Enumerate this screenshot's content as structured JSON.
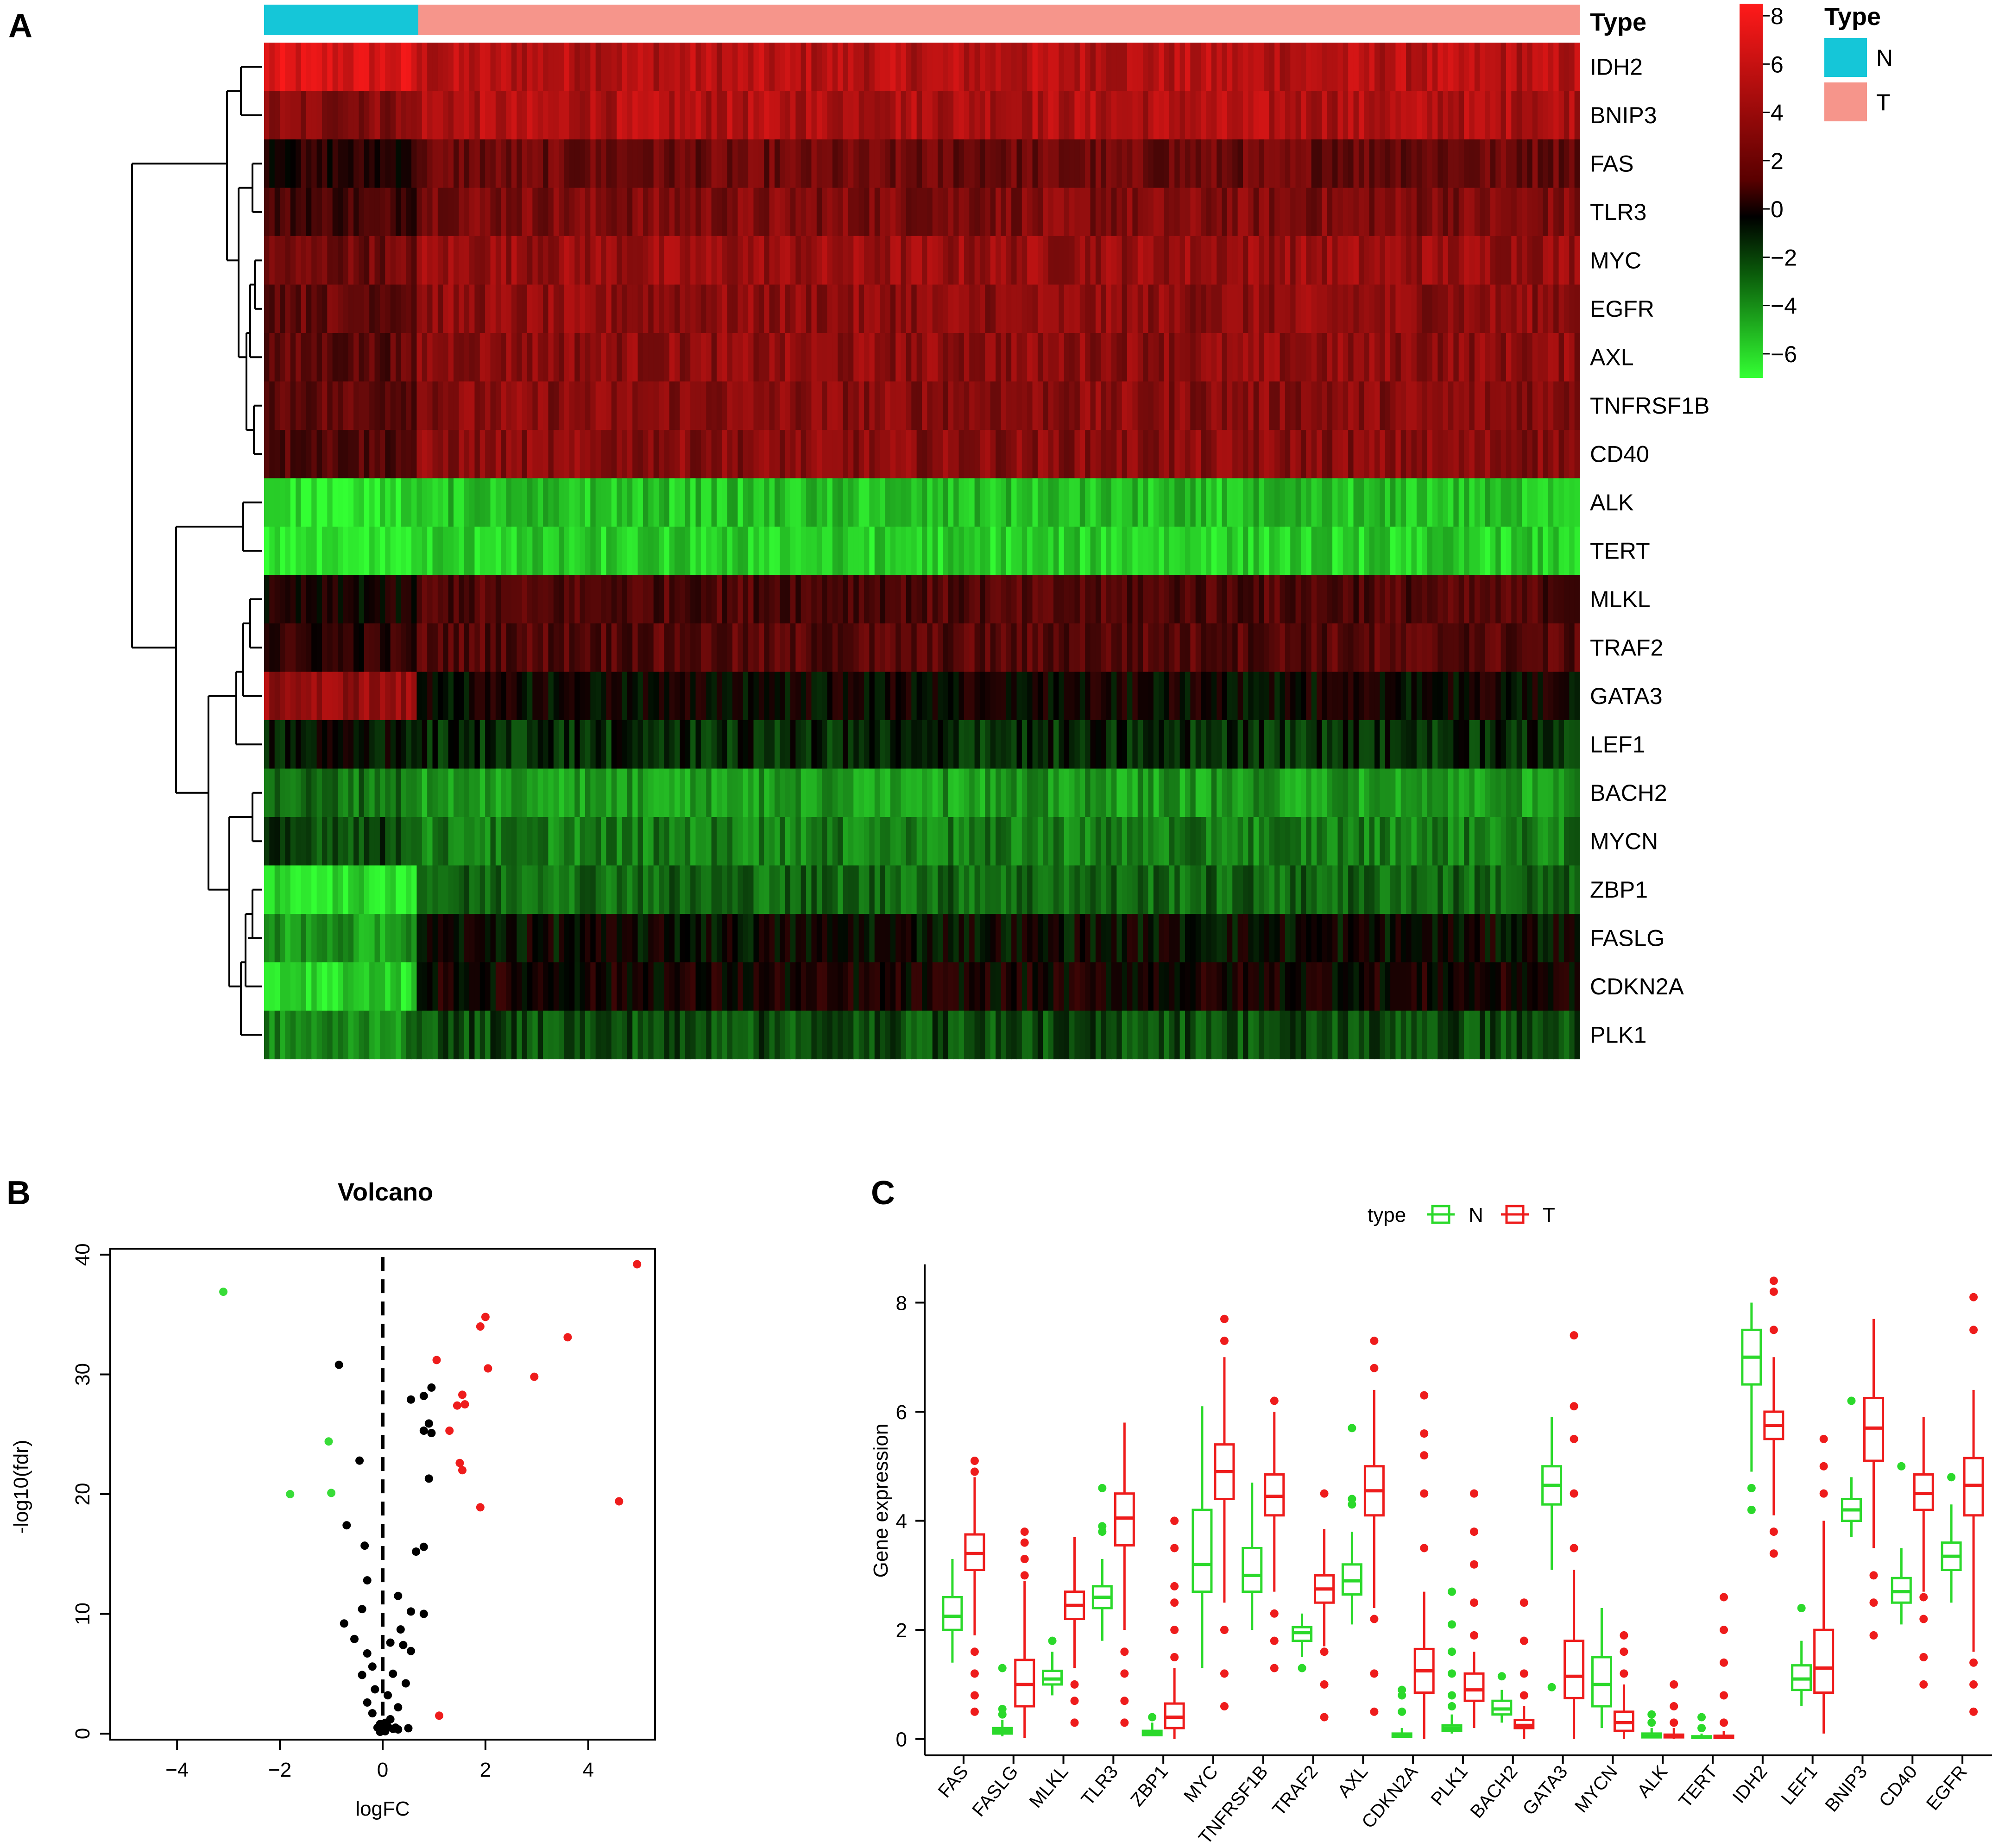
{
  "panels": {
    "a": "A",
    "b": "B",
    "c": "C"
  },
  "colors": {
    "normal": "#15c6d8",
    "tumor": "#f6958b",
    "box_n": "#2bd92b",
    "box_t": "#ee1c1c",
    "volcano_up": "#ee1c1c",
    "volcano_down": "#38dc38",
    "volcano_ns": "#000000",
    "scale_hi": "#ff1a1a",
    "scale_mid": "#000000",
    "scale_lo": "#33ff33"
  },
  "heatmap": {
    "type_label": "Type",
    "genes": [
      "IDH2",
      "BNIP3",
      "FAS",
      "TLR3",
      "MYC",
      "EGFR",
      "AXL",
      "TNFRSF1B",
      "CD40",
      "ALK",
      "TERT",
      "MLKL",
      "TRAF2",
      "GATA3",
      "LEF1",
      "BACH2",
      "MYCN",
      "ZBP1",
      "FASLG",
      "CDKN2A",
      "PLK1"
    ],
    "normal_fraction": 0.117,
    "mean_normal": [
      7.0,
      4.2,
      1.0,
      2.0,
      3.4,
      3.1,
      2.7,
      3.0,
      2.5,
      -6.2,
      -6.5,
      0.3,
      1.2,
      4.7,
      -0.3,
      -2.8,
      -1.6,
      -6.0,
      -4.0,
      -5.8,
      -3.5
    ],
    "mean_tumor": [
      5.8,
      5.6,
      3.2,
      3.9,
      4.8,
      4.4,
      4.4,
      4.2,
      4.2,
      -5.2,
      -5.6,
      2.3,
      2.5,
      0.2,
      -1.0,
      -4.0,
      -3.2,
      -2.5,
      0.0,
      0.5,
      -1.8
    ],
    "scale": {
      "ticks": [
        8,
        6,
        4,
        2,
        0,
        -2,
        -4,
        -6
      ],
      "min": -7,
      "max": 8.5
    },
    "legend": {
      "title": "Type",
      "items": [
        "N",
        "T"
      ]
    },
    "dendrogram": "hierarchical clustering of genes (left)"
  },
  "chart_data": [
    {
      "type": "scatter",
      "title": "Volcano",
      "xlabel": "logFC",
      "ylabel": "-log10(fdr)",
      "xlim": [
        -5.3,
        5.3
      ],
      "ylim": [
        -0.5,
        40.5
      ],
      "xticks": [
        -4,
        -2,
        0,
        2,
        4
      ],
      "yticks": [
        0,
        10,
        20,
        30,
        40
      ],
      "threshold_line_x": 0,
      "points_up": [
        [
          4.95,
          39.2
        ],
        [
          2.0,
          34.8
        ],
        [
          1.9,
          34.0
        ],
        [
          3.6,
          33.1
        ],
        [
          1.05,
          31.2
        ],
        [
          2.05,
          30.5
        ],
        [
          1.55,
          28.3
        ],
        [
          1.6,
          27.5
        ],
        [
          1.45,
          27.4
        ],
        [
          2.95,
          29.8
        ],
        [
          1.3,
          25.3
        ],
        [
          1.5,
          22.6
        ],
        [
          1.55,
          22.0
        ],
        [
          4.6,
          19.4
        ],
        [
          1.9,
          18.9
        ],
        [
          1.1,
          1.5
        ]
      ],
      "points_down": [
        [
          -3.1,
          36.9
        ],
        [
          -1.05,
          24.4
        ],
        [
          -1.8,
          20.0
        ],
        [
          -1.0,
          20.1
        ]
      ],
      "points_ns": [
        [
          -0.85,
          30.8
        ],
        [
          0.55,
          27.9
        ],
        [
          0.8,
          28.2
        ],
        [
          0.95,
          28.9
        ],
        [
          0.8,
          25.3
        ],
        [
          0.9,
          25.9
        ],
        [
          0.95,
          25.1
        ],
        [
          -0.45,
          22.8
        ],
        [
          0.9,
          21.3
        ],
        [
          -0.7,
          17.4
        ],
        [
          0.8,
          15.6
        ],
        [
          -0.35,
          15.7
        ],
        [
          0.65,
          15.2
        ],
        [
          -0.3,
          12.8
        ],
        [
          0.3,
          11.5
        ],
        [
          -0.4,
          10.4
        ],
        [
          0.55,
          10.2
        ],
        [
          0.8,
          10.0
        ],
        [
          -0.75,
          9.2
        ],
        [
          0.35,
          8.7
        ],
        [
          -0.55,
          7.9
        ],
        [
          0.15,
          7.6
        ],
        [
          0.4,
          7.4
        ],
        [
          -0.3,
          6.7
        ],
        [
          0.55,
          6.9
        ],
        [
          -0.2,
          5.6
        ],
        [
          0.2,
          5.0
        ],
        [
          -0.4,
          4.9
        ],
        [
          0.45,
          4.2
        ],
        [
          -0.15,
          3.7
        ],
        [
          0.1,
          3.2
        ],
        [
          -0.3,
          2.6
        ],
        [
          0.3,
          2.2
        ],
        [
          -0.2,
          1.7
        ],
        [
          0.15,
          1.2
        ],
        [
          0.05,
          0.9
        ],
        [
          -0.05,
          0.8
        ],
        [
          0.1,
          0.6
        ],
        [
          -0.1,
          0.5
        ],
        [
          0.2,
          0.4
        ],
        [
          0.0,
          0.3
        ],
        [
          0.25,
          0.5
        ],
        [
          0.05,
          0.2
        ],
        [
          0.3,
          0.35
        ],
        [
          0.5,
          0.45
        ],
        [
          -0.05,
          0.15
        ]
      ]
    },
    {
      "type": "box",
      "xlabel": "",
      "ylabel": "Gene expression",
      "ylim": [
        -0.3,
        8.7
      ],
      "yticks": [
        0,
        2,
        4,
        6,
        8
      ],
      "legend": {
        "title": "type",
        "items": [
          "N",
          "T"
        ]
      },
      "categories": [
        "FAS",
        "FASLG",
        "MLKL",
        "TLR3",
        "ZBP1",
        "MYC",
        "TNFRSF1B",
        "TRAF2",
        "AXL",
        "CDKN2A",
        "PLK1",
        "BACH2",
        "GATA3",
        "MYCN",
        "ALK",
        "TERT",
        "IDH2",
        "LEF1",
        "BNIP3",
        "CD40",
        "EGFR"
      ],
      "series": [
        {
          "name": "N",
          "boxes": [
            [
              1.4,
              2.0,
              2.25,
              2.6,
              3.3
            ],
            [
              0.05,
              0.1,
              0.15,
              0.2,
              0.35
            ],
            [
              0.8,
              1.0,
              1.1,
              1.25,
              1.6
            ],
            [
              1.8,
              2.4,
              2.6,
              2.8,
              3.3
            ],
            [
              0.05,
              0.07,
              0.1,
              0.15,
              0.3
            ],
            [
              1.3,
              2.7,
              3.2,
              4.2,
              6.1
            ],
            [
              2.0,
              2.7,
              3.0,
              3.5,
              4.7
            ],
            [
              1.5,
              1.8,
              1.95,
              2.05,
              2.3
            ],
            [
              2.1,
              2.65,
              2.9,
              3.2,
              3.8
            ],
            [
              0.02,
              0.04,
              0.06,
              0.1,
              0.2
            ],
            [
              0.1,
              0.15,
              0.2,
              0.25,
              0.45
            ],
            [
              0.3,
              0.45,
              0.55,
              0.7,
              0.9
            ],
            [
              3.1,
              4.3,
              4.65,
              5.0,
              5.9
            ],
            [
              0.2,
              0.6,
              1.0,
              1.5,
              2.4
            ],
            [
              0.02,
              0.03,
              0.05,
              0.1,
              0.2
            ],
            [
              0.01,
              0.02,
              0.03,
              0.05,
              0.1
            ],
            [
              4.9,
              6.5,
              7.0,
              7.5,
              8.0
            ],
            [
              0.6,
              0.9,
              1.1,
              1.35,
              1.8
            ],
            [
              3.7,
              4.0,
              4.2,
              4.4,
              4.8
            ],
            [
              2.1,
              2.5,
              2.7,
              2.95,
              3.5
            ],
            [
              2.5,
              3.1,
              3.35,
              3.6,
              4.3
            ]
          ],
          "outliers": [
            [],
            [
              0.55,
              0.45,
              1.3
            ],
            [
              1.8
            ],
            [
              3.8,
              3.9,
              4.6
            ],
            [
              0.4
            ],
            [],
            [],
            [
              1.3
            ],
            [
              4.3,
              4.4,
              5.7
            ],
            [
              0.5,
              0.8,
              0.9
            ],
            [
              0.6,
              0.8,
              1.2,
              1.6,
              2.1,
              2.7
            ],
            [
              1.15
            ],
            [
              0.95
            ],
            [],
            [
              0.3,
              0.45
            ],
            [
              0.2,
              0.4
            ],
            [
              4.2,
              4.6
            ],
            [
              2.4
            ],
            [
              6.2
            ],
            [
              5.0
            ],
            [
              4.8
            ]
          ]
        },
        {
          "name": "T",
          "boxes": [
            [
              1.9,
              3.1,
              3.4,
              3.75,
              4.8
            ],
            [
              0.02,
              0.6,
              1.0,
              1.45,
              2.9
            ],
            [
              1.3,
              2.2,
              2.45,
              2.7,
              3.7
            ],
            [
              2.0,
              3.55,
              4.05,
              4.5,
              5.8
            ],
            [
              0.0,
              0.2,
              0.4,
              0.65,
              1.3
            ],
            [
              2.5,
              4.4,
              4.9,
              5.4,
              7.0
            ],
            [
              2.7,
              4.1,
              4.45,
              4.85,
              6.0
            ],
            [
              1.7,
              2.5,
              2.75,
              3.0,
              3.85
            ],
            [
              2.4,
              4.1,
              4.55,
              5.0,
              6.4
            ],
            [
              0.0,
              0.85,
              1.25,
              1.65,
              2.7
            ],
            [
              0.2,
              0.7,
              0.9,
              1.2,
              1.6
            ],
            [
              0.0,
              0.2,
              0.25,
              0.35,
              0.6
            ],
            [
              0.0,
              0.75,
              1.15,
              1.8,
              3.1
            ],
            [
              0.0,
              0.15,
              0.3,
              0.5,
              1.0
            ],
            [
              0.0,
              0.03,
              0.05,
              0.08,
              0.2
            ],
            [
              0.0,
              0.02,
              0.03,
              0.06,
              0.15
            ],
            [
              4.1,
              5.5,
              5.75,
              6.0,
              7.0
            ],
            [
              0.1,
              0.85,
              1.3,
              2.0,
              4.0
            ],
            [
              3.5,
              5.1,
              5.7,
              6.25,
              7.7
            ],
            [
              2.7,
              4.2,
              4.5,
              4.85,
              5.9
            ],
            [
              1.6,
              4.1,
              4.65,
              5.15,
              6.4
            ]
          ],
          "outliers": [
            [
              0.5,
              0.8,
              1.2,
              1.6,
              4.9,
              5.1
            ],
            [
              3.0,
              3.3,
              3.6,
              3.8
            ],
            [
              0.3,
              0.7,
              1.0
            ],
            [
              0.3,
              0.7,
              1.2,
              1.6
            ],
            [
              1.5,
              2.0,
              2.5,
              2.8,
              3.5,
              4.0
            ],
            [
              0.6,
              1.2,
              2.0,
              7.3,
              7.7
            ],
            [
              1.3,
              1.8,
              2.3,
              6.2
            ],
            [
              0.4,
              1.0,
              1.6,
              4.5
            ],
            [
              0.5,
              1.2,
              2.2,
              6.8,
              7.3
            ],
            [
              3.5,
              4.5,
              5.2,
              5.6,
              6.3
            ],
            [
              1.9,
              2.5,
              3.2,
              3.8,
              4.5
            ],
            [
              0.8,
              1.2,
              1.8,
              2.5
            ],
            [
              3.5,
              4.5,
              5.5,
              6.1,
              7.4
            ],
            [
              1.2,
              1.6,
              1.9
            ],
            [
              0.3,
              0.6,
              1.0
            ],
            [
              0.3,
              0.8,
              1.4,
              2.0,
              2.6
            ],
            [
              3.4,
              3.8,
              7.5,
              8.2,
              8.4
            ],
            [
              4.5,
              5.0,
              5.5
            ],
            [
              1.9,
              2.5,
              3.0
            ],
            [
              1.0,
              1.5,
              2.2,
              2.6
            ],
            [
              0.5,
              1.0,
              1.4,
              7.5,
              8.1
            ]
          ]
        }
      ]
    }
  ]
}
